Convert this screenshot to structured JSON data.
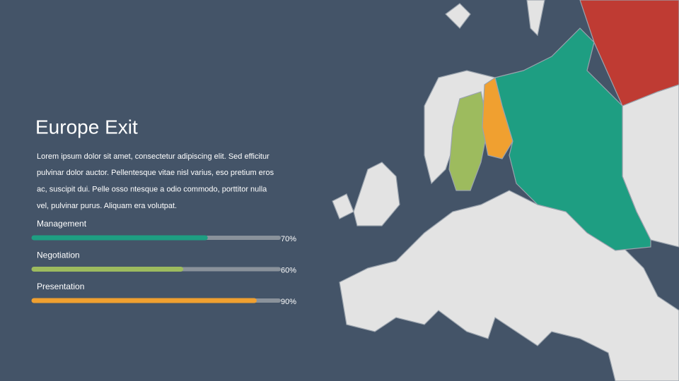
{
  "title": "Europe Exit",
  "body_lines": [
    "Lorem ipsum dolor sit amet, consectetur adipiscing elit. Sed efficitur",
    "pulvinar dolor auctor. Pellentesque vitae nisl varius, eso pretium eros",
    "ac, suscipit dui. Pelle osso  ntesque a odio commodo, porttitor nulla",
    "vel, pulvinar purus. Aliquam era volutpat."
  ],
  "skills": {
    "xlim": [
      0,
      100
    ],
    "items": [
      {
        "name": "Management",
        "value": 70,
        "value_label": "70%",
        "color": "#1e9e82"
      },
      {
        "name": "Negotiation",
        "value": 60,
        "value_label": "60%",
        "color": "#9dbb5e"
      },
      {
        "name": "Presentation",
        "value": 90,
        "value_label": "90%",
        "color": "#f0a030"
      }
    ]
  }
}
